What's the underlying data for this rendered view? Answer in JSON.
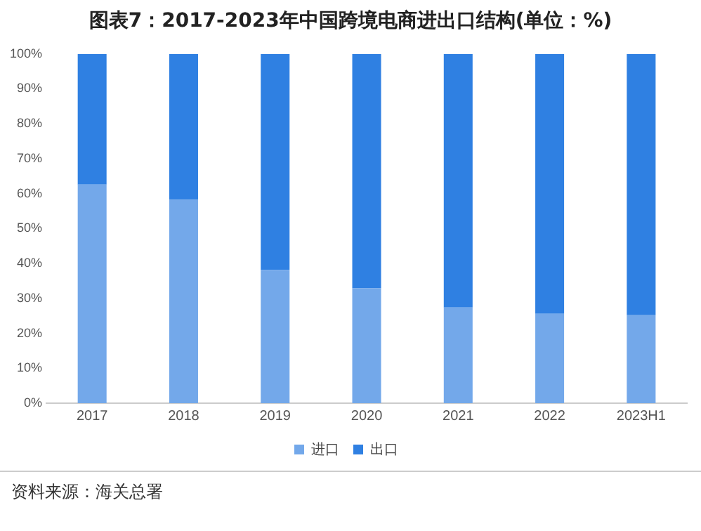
{
  "chart_data": {
    "type": "bar",
    "stacked": true,
    "title": "图表7：2017-2023年中国跨境电商进出口结构(单位：%)",
    "categories": [
      "2017",
      "2018",
      "2019",
      "2020",
      "2021",
      "2022",
      "2023H1"
    ],
    "series": [
      {
        "name": "进口",
        "color": "#73a8ea",
        "values": [
          62.6,
          58.3,
          38.1,
          32.9,
          27.4,
          25.6,
          25.2
        ]
      },
      {
        "name": "出口",
        "color": "#2f80e2",
        "values": [
          37.4,
          41.7,
          61.9,
          67.1,
          72.6,
          74.4,
          74.8
        ]
      }
    ],
    "ylim": [
      0,
      100
    ],
    "yticks": [
      {
        "value": 0,
        "label": "0%"
      },
      {
        "value": 10,
        "label": "10%"
      },
      {
        "value": 20,
        "label": "20%"
      },
      {
        "value": 30,
        "label": "30%"
      },
      {
        "value": 40,
        "label": "40%"
      },
      {
        "value": 50,
        "label": "50%"
      },
      {
        "value": 60,
        "label": "60%"
      },
      {
        "value": 70,
        "label": "70%"
      },
      {
        "value": 80,
        "label": "80%"
      },
      {
        "value": 90,
        "label": "90%"
      },
      {
        "value": 100,
        "label": "100%"
      }
    ],
    "grid": false,
    "legend": "bottom",
    "annotations": [
      "资料来源：海关总署"
    ]
  }
}
